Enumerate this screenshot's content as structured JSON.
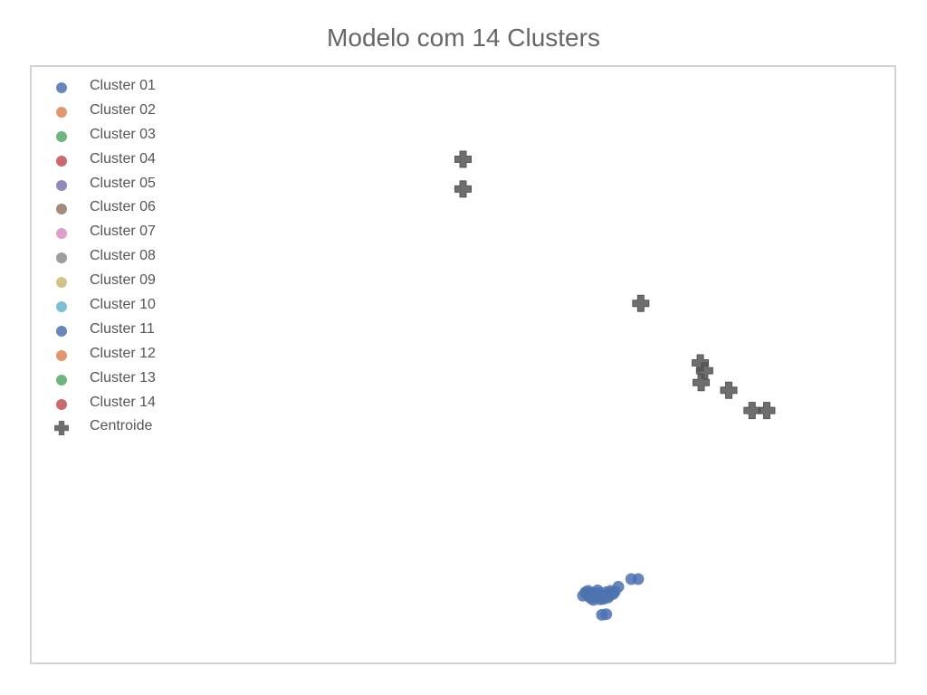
{
  "chart_data": {
    "type": "scatter",
    "title": "Modelo com 14 Clusters",
    "xlabel": "",
    "ylabel": "",
    "xlim": [
      0,
      100
    ],
    "ylim": [
      0,
      100
    ],
    "axes_visible": false,
    "grid": false,
    "legend_position": "upper-left",
    "series": [
      {
        "name": "Cluster 01",
        "color": "#4c72b0",
        "points": [
          [
            64.3,
            11.5
          ],
          [
            64.6,
            11.1
          ],
          [
            65.0,
            11.7
          ],
          [
            65.4,
            11.0
          ],
          [
            65.8,
            11.6
          ],
          [
            66.2,
            11.2
          ],
          [
            66.6,
            11.8
          ],
          [
            67.0,
            11.3
          ],
          [
            67.4,
            11.5
          ],
          [
            63.9,
            11.2
          ],
          [
            64.5,
            12.0
          ],
          [
            65.1,
            10.5
          ],
          [
            65.9,
            10.6
          ],
          [
            66.8,
            10.9
          ],
          [
            67.1,
            12.0
          ],
          [
            68.0,
            12.7
          ],
          [
            69.5,
            14.0
          ],
          [
            70.3,
            14.0
          ],
          [
            66.6,
            8.1
          ],
          [
            66.1,
            8.0
          ],
          [
            64.2,
            11.8
          ],
          [
            64.8,
            10.8
          ],
          [
            65.6,
            12.1
          ],
          [
            66.3,
            10.7
          ],
          [
            67.6,
            11.9
          ]
        ]
      },
      {
        "name": "Cluster 02",
        "color": "#dd8452",
        "points": []
      },
      {
        "name": "Cluster 03",
        "color": "#55a868",
        "points": []
      },
      {
        "name": "Cluster 04",
        "color": "#c44e52",
        "points": []
      },
      {
        "name": "Cluster 05",
        "color": "#8172b3",
        "points": []
      },
      {
        "name": "Cluster 06",
        "color": "#937860",
        "points": []
      },
      {
        "name": "Cluster 07",
        "color": "#da8bc3",
        "points": []
      },
      {
        "name": "Cluster 08",
        "color": "#8c8c8c",
        "points": []
      },
      {
        "name": "Cluster 09",
        "color": "#ccb974",
        "points": []
      },
      {
        "name": "Cluster 10",
        "color": "#64b5cd",
        "points": []
      },
      {
        "name": "Cluster 11",
        "color": "#4c72b0",
        "points": []
      },
      {
        "name": "Cluster 12",
        "color": "#dd8452",
        "points": []
      },
      {
        "name": "Cluster 13",
        "color": "#55a868",
        "points": []
      },
      {
        "name": "Cluster 14",
        "color": "#c44e52",
        "points": []
      }
    ],
    "centroids": {
      "name": "Centroide",
      "color": "#555555",
      "points": [
        [
          50.0,
          84.5
        ],
        [
          50.0,
          79.5
        ],
        [
          70.6,
          60.3
        ],
        [
          77.5,
          50.3
        ],
        [
          78.0,
          49.0
        ],
        [
          77.6,
          47.0
        ],
        [
          80.8,
          45.7
        ],
        [
          83.5,
          42.3
        ],
        [
          85.2,
          42.3
        ]
      ]
    }
  }
}
